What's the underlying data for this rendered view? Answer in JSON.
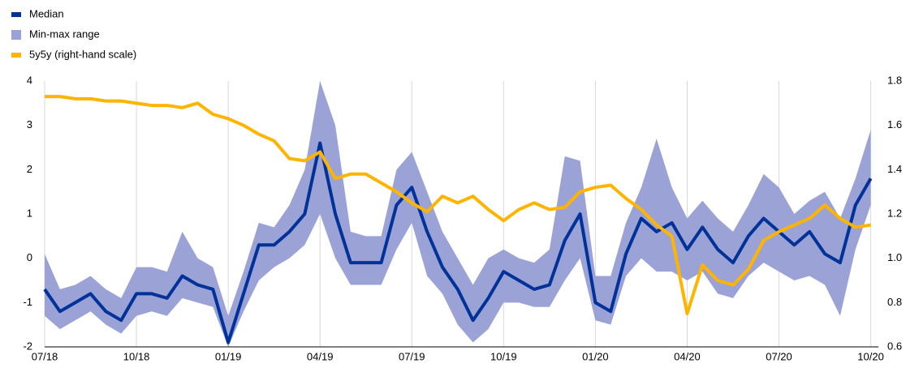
{
  "chart_data": {
    "type": "line",
    "x": [
      0,
      0.5,
      1,
      1.5,
      2,
      2.5,
      3,
      3.5,
      4,
      4.5,
      5,
      5.5,
      6,
      6.5,
      7,
      7.5,
      8,
      8.5,
      9,
      9.5,
      10,
      10.5,
      11,
      11.5,
      12,
      12.5,
      13,
      13.5,
      14,
      14.5,
      15,
      15.5,
      16,
      16.5,
      17,
      17.5,
      18,
      18.5,
      19,
      19.5,
      20,
      20.5,
      21,
      21.5,
      22,
      22.5,
      23,
      23.5,
      24,
      24.5,
      25,
      25.5,
      26,
      26.5,
      27
    ],
    "series": [
      {
        "name": "Median",
        "color": "#003299",
        "values": [
          -0.7,
          -1.2,
          -1.0,
          -0.8,
          -1.2,
          -1.4,
          -0.8,
          -0.8,
          -0.9,
          -0.4,
          -0.6,
          -0.7,
          -1.9,
          -0.8,
          0.3,
          0.3,
          0.6,
          1.0,
          2.6,
          1.0,
          -0.1,
          -0.1,
          -0.1,
          1.2,
          1.6,
          0.6,
          -0.2,
          -0.7,
          -1.4,
          -0.9,
          -0.3,
          -0.5,
          -0.7,
          -0.6,
          0.4,
          1.0,
          -1.0,
          -1.2,
          0.1,
          0.9,
          0.6,
          0.8,
          0.2,
          0.7,
          0.2,
          -0.1,
          0.5,
          0.9,
          0.6,
          0.3,
          0.6,
          0.1,
          -0.1,
          1.2,
          1.8
        ]
      },
      {
        "name": "Min-max range",
        "color": "#9ba3d6",
        "high": [
          0.1,
          -0.7,
          -0.6,
          -0.4,
          -0.7,
          -0.9,
          -0.2,
          -0.2,
          -0.3,
          0.6,
          0.0,
          -0.2,
          -1.3,
          -0.3,
          0.8,
          0.7,
          1.2,
          2.0,
          4.0,
          3.0,
          0.6,
          0.5,
          0.5,
          2.0,
          2.4,
          1.5,
          0.6,
          0.0,
          -0.6,
          0.0,
          0.2,
          0.0,
          -0.1,
          0.2,
          2.3,
          2.2,
          -0.4,
          -0.4,
          0.8,
          1.6,
          2.7,
          1.6,
          0.9,
          1.3,
          0.9,
          0.6,
          1.2,
          1.9,
          1.6,
          1.0,
          1.3,
          1.5,
          0.9,
          1.8,
          2.9
        ],
        "low": [
          -1.3,
          -1.6,
          -1.4,
          -1.2,
          -1.5,
          -1.7,
          -1.3,
          -1.2,
          -1.3,
          -0.9,
          -1.0,
          -1.1,
          -2.0,
          -1.2,
          -0.5,
          -0.2,
          0.0,
          0.3,
          1.0,
          0.0,
          -0.6,
          -0.6,
          -0.6,
          0.2,
          0.8,
          -0.4,
          -0.8,
          -1.5,
          -1.9,
          -1.6,
          -1.0,
          -1.0,
          -1.1,
          -1.1,
          -0.5,
          0.0,
          -1.4,
          -1.5,
          -0.4,
          0.0,
          -0.3,
          -0.3,
          -0.5,
          -0.3,
          -0.8,
          -0.9,
          -0.4,
          -0.1,
          -0.3,
          -0.5,
          -0.4,
          -0.6,
          -1.3,
          0.2,
          1.2
        ]
      },
      {
        "name": "5y5y (right-hand scale)",
        "color": "#ffb400",
        "axis": "y2",
        "values": [
          1.73,
          1.73,
          1.72,
          1.72,
          1.71,
          1.71,
          1.7,
          1.69,
          1.69,
          1.68,
          1.7,
          1.65,
          1.63,
          1.6,
          1.56,
          1.53,
          1.45,
          1.44,
          1.48,
          1.36,
          1.38,
          1.38,
          1.34,
          1.3,
          1.25,
          1.21,
          1.28,
          1.25,
          1.28,
          1.22,
          1.17,
          1.22,
          1.25,
          1.22,
          1.23,
          1.3,
          1.32,
          1.33,
          1.27,
          1.22,
          1.15,
          1.1,
          0.75,
          0.97,
          0.9,
          0.88,
          0.95,
          1.08,
          1.12,
          1.15,
          1.18,
          1.24,
          1.18,
          1.14,
          1.15
        ]
      }
    ],
    "xlim": [
      0,
      27.25
    ],
    "xticks": [
      {
        "value": 0,
        "label": "07/18"
      },
      {
        "value": 3,
        "label": "10/18"
      },
      {
        "value": 6,
        "label": "01/19"
      },
      {
        "value": 9,
        "label": "04/19"
      },
      {
        "value": 12,
        "label": "07/19"
      },
      {
        "value": 15,
        "label": "10/19"
      },
      {
        "value": 18,
        "label": "01/20"
      },
      {
        "value": 21,
        "label": "04/20"
      },
      {
        "value": 24,
        "label": "07/20"
      },
      {
        "value": 27,
        "label": "10/20"
      }
    ],
    "ylim": [
      -2,
      4
    ],
    "yticks": [
      -2,
      -1,
      0,
      1,
      2,
      3,
      4
    ],
    "y2lim": [
      0.6,
      1.8
    ],
    "y2ticks": [
      {
        "value": 0.6,
        "label": "0.6"
      },
      {
        "value": 0.8,
        "label": "0.8"
      },
      {
        "value": 1.0,
        "label": "1.0"
      },
      {
        "value": 1.2,
        "label": "1.2"
      },
      {
        "value": 1.4,
        "label": "1.4"
      },
      {
        "value": 1.6,
        "label": "1.6"
      },
      {
        "value": 1.8,
        "label": "1.8"
      }
    ],
    "grid": true,
    "legend": "top-left"
  }
}
